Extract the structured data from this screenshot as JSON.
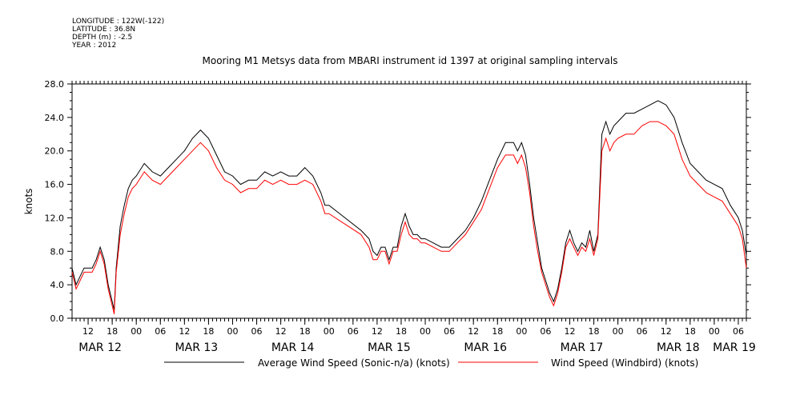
{
  "meta": {
    "longitude": "LONGITUDE : 122W(-122)",
    "latitude": "LATITUDE : 36.8N",
    "depth": "DEPTH (m) : -2.5",
    "year": "YEAR : 2012"
  },
  "chart_data": {
    "type": "line",
    "title": "Mooring M1 Metsys data from MBARI instrument id 1397 at original sampling intervals",
    "ylabel": "knots",
    "xlabel": "",
    "ylim": [
      0,
      28
    ],
    "yticks": [
      "0.0",
      "4.0",
      "8.0",
      "12.0",
      "16.0",
      "20.0",
      "24.0",
      "28.0"
    ],
    "xlim": [
      8,
      176
    ],
    "x_unit": "hours since MAR 12 00",
    "hour_ticks": [
      {
        "x": 12,
        "label": "12"
      },
      {
        "x": 18,
        "label": "18"
      },
      {
        "x": 24,
        "label": "00"
      },
      {
        "x": 30,
        "label": "06"
      },
      {
        "x": 36,
        "label": "12"
      },
      {
        "x": 42,
        "label": "18"
      },
      {
        "x": 48,
        "label": "00"
      },
      {
        "x": 54,
        "label": "06"
      },
      {
        "x": 60,
        "label": "12"
      },
      {
        "x": 66,
        "label": "18"
      },
      {
        "x": 72,
        "label": "00"
      },
      {
        "x": 78,
        "label": "06"
      },
      {
        "x": 84,
        "label": "12"
      },
      {
        "x": 90,
        "label": "18"
      },
      {
        "x": 96,
        "label": "00"
      },
      {
        "x": 102,
        "label": "06"
      },
      {
        "x": 108,
        "label": "12"
      },
      {
        "x": 114,
        "label": "18"
      },
      {
        "x": 120,
        "label": "00"
      },
      {
        "x": 126,
        "label": "06"
      },
      {
        "x": 132,
        "label": "12"
      },
      {
        "x": 138,
        "label": "18"
      },
      {
        "x": 144,
        "label": "00"
      },
      {
        "x": 150,
        "label": "06"
      },
      {
        "x": 156,
        "label": "12"
      },
      {
        "x": 162,
        "label": "18"
      },
      {
        "x": 168,
        "label": "00"
      },
      {
        "x": 174,
        "label": "06"
      }
    ],
    "day_labels": [
      {
        "x": 15,
        "label": "MAR 12"
      },
      {
        "x": 39,
        "label": "MAR 13"
      },
      {
        "x": 63,
        "label": "MAR 14"
      },
      {
        "x": 87,
        "label": "MAR 15"
      },
      {
        "x": 111,
        "label": "MAR 16"
      },
      {
        "x": 135,
        "label": "MAR 17"
      },
      {
        "x": 159,
        "label": "MAR 18"
      },
      {
        "x": 173,
        "label": "MAR 19"
      }
    ],
    "grid": false,
    "legend_position": "bottom",
    "series": [
      {
        "name": "Average Wind Speed (Sonic-n/a) (knots)",
        "color": "#000000",
        "x": [
          8,
          9,
          10,
          11,
          12,
          13,
          14,
          15,
          16,
          17,
          18,
          18.5,
          19,
          20,
          21,
          22,
          23,
          24,
          26,
          28,
          30,
          32,
          34,
          36,
          38,
          40,
          42,
          44,
          46,
          48,
          50,
          52,
          54,
          56,
          58,
          60,
          62,
          64,
          66,
          68,
          70,
          71,
          72,
          80,
          82,
          83,
          84,
          85,
          86,
          87,
          88,
          89,
          90,
          91,
          92,
          93,
          94,
          95,
          96,
          98,
          100,
          102,
          104,
          106,
          108,
          110,
          112,
          114,
          116,
          118,
          119,
          120,
          121,
          122,
          123,
          124,
          125,
          126,
          127,
          128,
          129,
          130,
          131,
          132,
          133,
          134,
          135,
          136,
          137,
          138,
          139,
          140,
          141,
          142,
          143,
          144,
          146,
          148,
          150,
          152,
          154,
          156,
          158,
          160,
          162,
          164,
          166,
          168,
          170,
          172,
          174,
          175,
          176
        ],
        "y": [
          6.0,
          4.0,
          5.0,
          6.0,
          6.0,
          6.0,
          7.0,
          8.5,
          7.0,
          4.0,
          2.0,
          1.0,
          6.0,
          11.0,
          13.5,
          15.5,
          16.5,
          17.0,
          18.5,
          17.5,
          17.0,
          18.0,
          19.0,
          20.0,
          21.5,
          22.5,
          21.5,
          19.5,
          17.5,
          17.0,
          16.0,
          16.5,
          16.5,
          17.5,
          17.0,
          17.5,
          17.0,
          17.0,
          18.0,
          17.0,
          15.0,
          13.5,
          13.5,
          10.5,
          9.5,
          8.0,
          7.5,
          8.5,
          8.5,
          7.0,
          8.5,
          8.5,
          11.0,
          12.5,
          11.0,
          10.0,
          10.0,
          9.5,
          9.5,
          9.0,
          8.5,
          8.5,
          9.5,
          10.5,
          12.0,
          14.0,
          16.5,
          19.0,
          21.0,
          21.0,
          20.0,
          21.0,
          19.5,
          16.0,
          12.0,
          9.0,
          6.0,
          4.5,
          3.0,
          2.0,
          3.5,
          6.0,
          9.0,
          10.5,
          9.0,
          8.0,
          9.0,
          8.5,
          10.5,
          8.0,
          10.0,
          22.0,
          23.5,
          22.0,
          23.0,
          23.5,
          24.5,
          24.5,
          25.0,
          25.5,
          26.0,
          25.5,
          24.0,
          21.0,
          18.5,
          17.5,
          16.5,
          16.0,
          15.5,
          13.5,
          12.0,
          10.5,
          7.5
        ]
      },
      {
        "name": "Wind Speed (Windbird) (knots)",
        "color": "#ff0000",
        "x": [
          8,
          9,
          10,
          11,
          12,
          13,
          14,
          15,
          16,
          17,
          18,
          18.5,
          19,
          20,
          21,
          22,
          23,
          24,
          26,
          28,
          30,
          32,
          34,
          36,
          38,
          40,
          42,
          44,
          46,
          48,
          50,
          52,
          54,
          56,
          58,
          60,
          62,
          64,
          66,
          68,
          70,
          71,
          72,
          80,
          82,
          83,
          84,
          85,
          86,
          87,
          88,
          89,
          90,
          91,
          92,
          93,
          94,
          95,
          96,
          98,
          100,
          102,
          104,
          106,
          108,
          110,
          112,
          114,
          116,
          118,
          119,
          120,
          121,
          122,
          123,
          124,
          125,
          126,
          127,
          128,
          129,
          130,
          131,
          132,
          133,
          134,
          135,
          136,
          137,
          138,
          139,
          140,
          141,
          142,
          143,
          144,
          146,
          148,
          150,
          152,
          154,
          156,
          158,
          160,
          162,
          164,
          166,
          168,
          170,
          172,
          174,
          175,
          176
        ],
        "y": [
          5.5,
          3.5,
          4.5,
          5.5,
          5.5,
          5.5,
          6.5,
          8.0,
          6.5,
          3.5,
          1.5,
          0.5,
          5.5,
          10.0,
          12.5,
          14.5,
          15.5,
          16.0,
          17.5,
          16.5,
          16.0,
          17.0,
          18.0,
          19.0,
          20.0,
          21.0,
          20.0,
          18.0,
          16.5,
          16.0,
          15.0,
          15.5,
          15.5,
          16.5,
          16.0,
          16.5,
          16.0,
          16.0,
          16.5,
          16.0,
          14.0,
          12.5,
          12.5,
          10.0,
          8.5,
          7.0,
          7.0,
          8.0,
          8.0,
          6.5,
          8.0,
          8.0,
          10.0,
          11.5,
          10.0,
          9.5,
          9.5,
          9.0,
          9.0,
          8.5,
          8.0,
          8.0,
          9.0,
          10.0,
          11.5,
          13.0,
          15.5,
          18.0,
          19.5,
          19.5,
          18.5,
          19.5,
          18.0,
          15.0,
          11.0,
          8.0,
          5.5,
          4.0,
          2.5,
          1.5,
          3.0,
          5.5,
          8.5,
          9.5,
          8.5,
          7.5,
          8.5,
          8.0,
          9.5,
          7.5,
          9.5,
          20.0,
          21.5,
          20.0,
          21.0,
          21.5,
          22.0,
          22.0,
          23.0,
          23.5,
          23.5,
          23.0,
          22.0,
          19.0,
          17.0,
          16.0,
          15.0,
          14.5,
          14.0,
          12.5,
          11.0,
          9.5,
          6.0
        ]
      }
    ]
  }
}
